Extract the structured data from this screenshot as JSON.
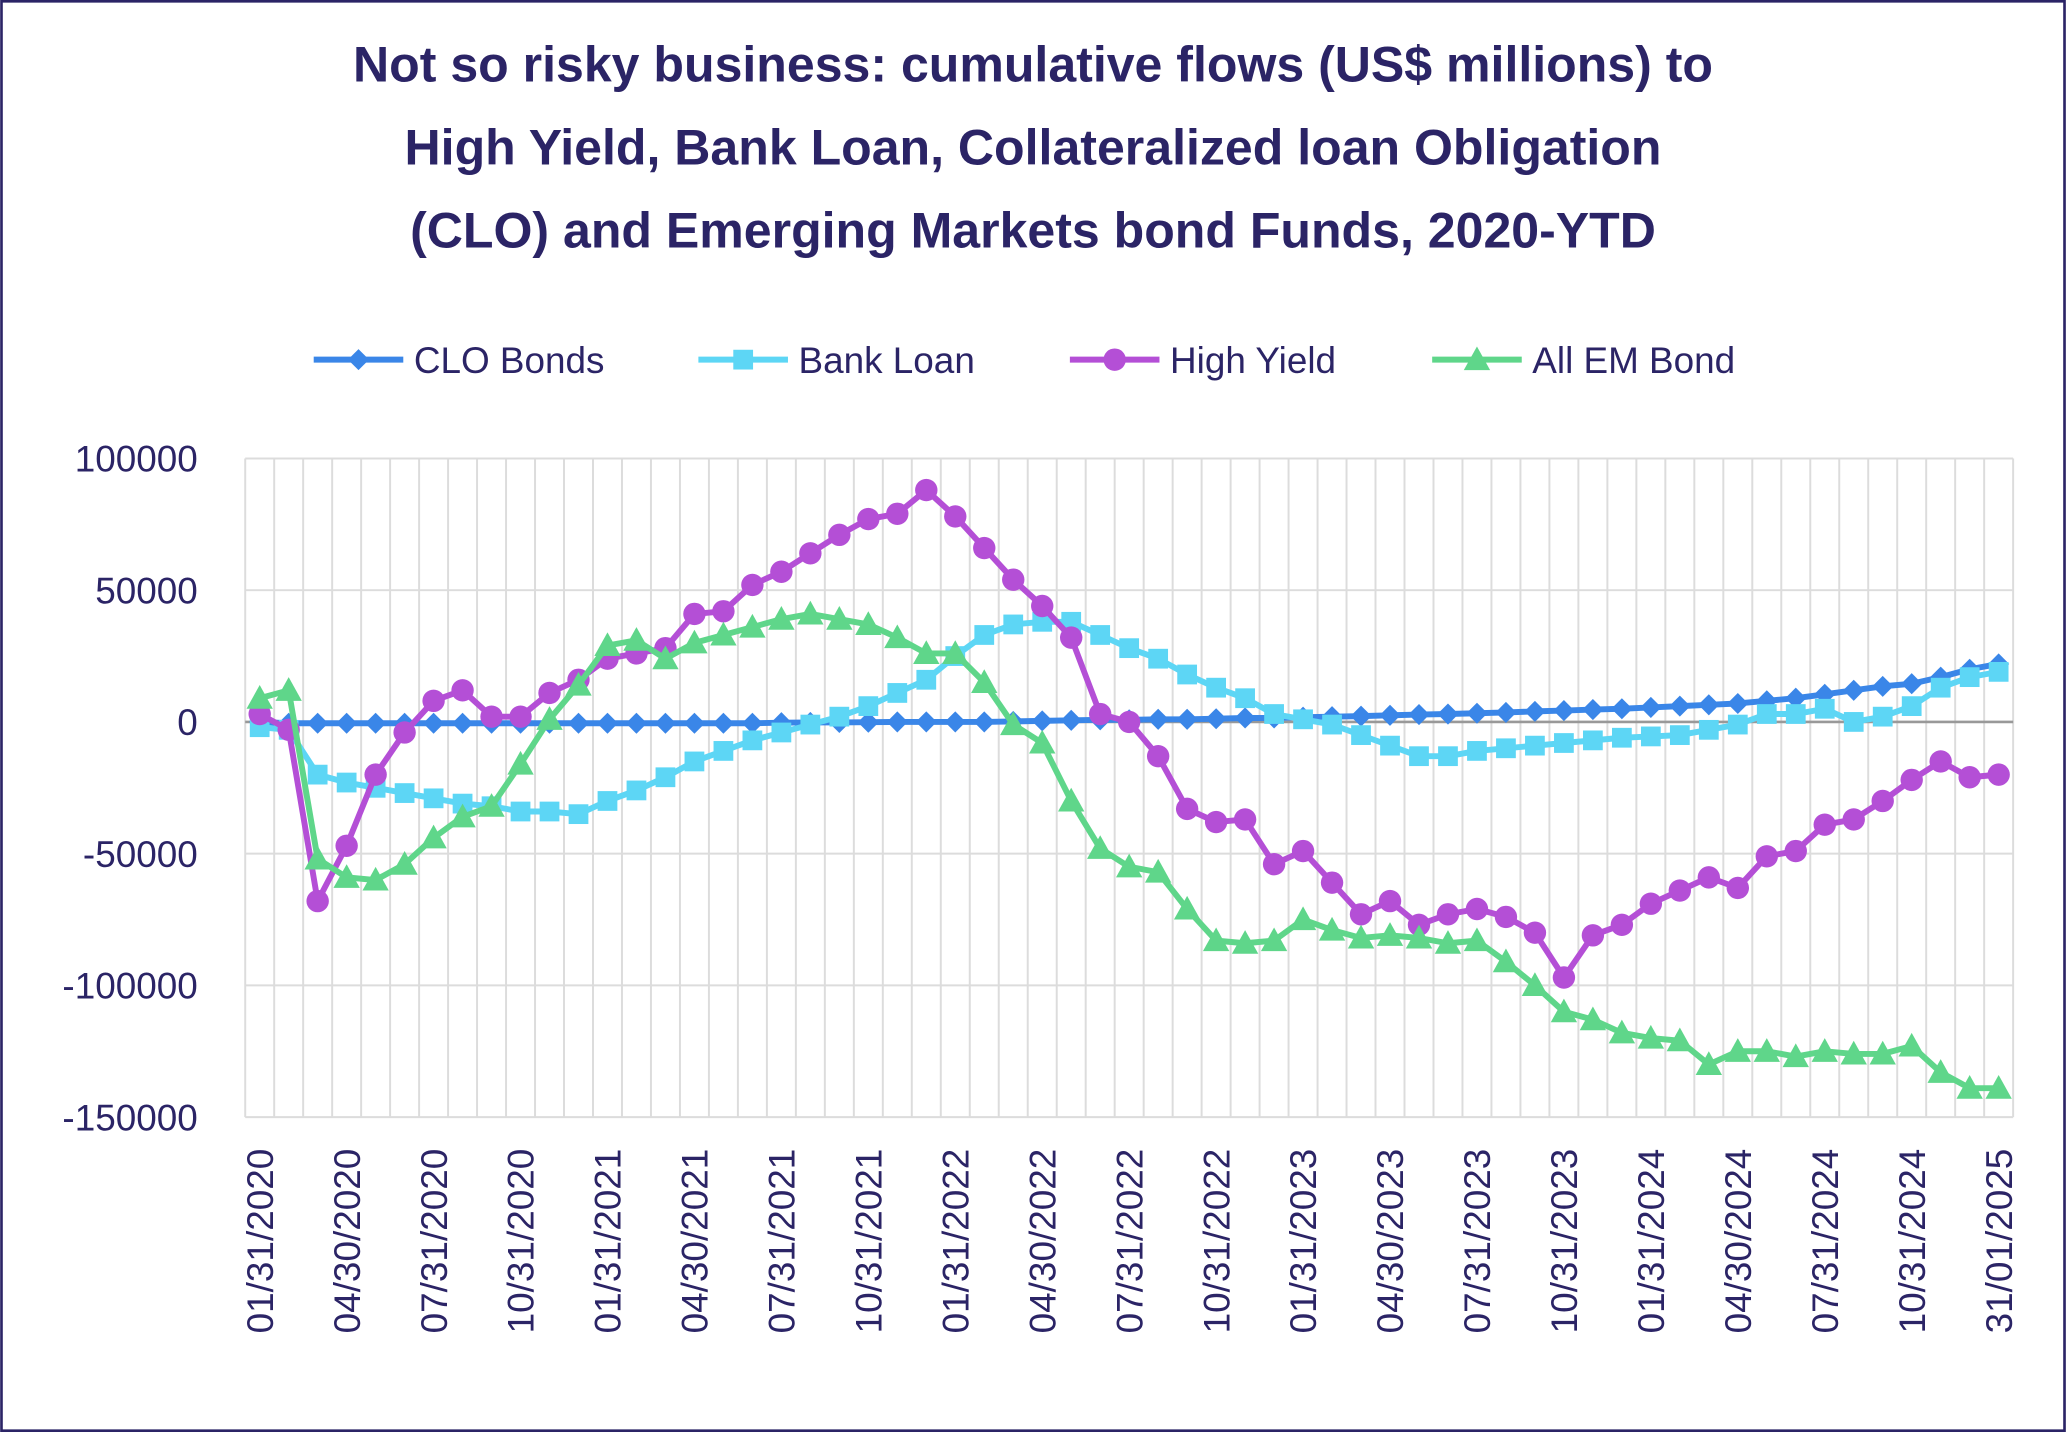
{
  "chart_data": {
    "type": "line",
    "title": [
      "Not so risky business: cumulative flows (US$ millions) to",
      "High Yield, Bank Loan, Collateralized loan Obligation",
      "(CLO) and Emerging Markets bond Funds, 2020-YTD"
    ],
    "categories": [
      "01/31/2020",
      null,
      null,
      "04/30/2020",
      null,
      null,
      "07/31/2020",
      null,
      null,
      "10/31/2020",
      null,
      null,
      "01/31/2021",
      null,
      null,
      "04/30/2021",
      null,
      null,
      "07/31/2021",
      null,
      null,
      "10/31/2021",
      null,
      null,
      "01/31/2022",
      null,
      null,
      "04/30/2022",
      null,
      null,
      "07/31/2022",
      null,
      null,
      "10/31/2022",
      null,
      null,
      "01/31/2023",
      null,
      null,
      "04/30/2023",
      null,
      null,
      "07/31/2023",
      null,
      null,
      "10/31/2023",
      null,
      null,
      "01/31/2024",
      null,
      null,
      "04/30/2024",
      null,
      null,
      "07/31/2024",
      null,
      null,
      "10/31/2024",
      null,
      null,
      "31/01/2025"
    ],
    "series": [
      {
        "name": "CLO Bonds",
        "color": "#3a86e8",
        "marker": "diamond",
        "values": [
          0,
          -500,
          -500,
          -500,
          -500,
          -500,
          -500,
          -500,
          -500,
          -500,
          -500,
          -500,
          -500,
          -500,
          -500,
          -500,
          -500,
          -500,
          -300,
          -200,
          -200,
          -100,
          0,
          0,
          0,
          0,
          200,
          400,
          600,
          800,
          800,
          1000,
          1000,
          1200,
          1500,
          1500,
          1800,
          2000,
          2200,
          2500,
          2800,
          3000,
          3300,
          3600,
          4000,
          4300,
          4700,
          5000,
          5500,
          6000,
          6500,
          7000,
          8000,
          9000,
          10500,
          12000,
          13500,
          14500,
          17000,
          20000,
          22000
        ]
      },
      {
        "name": "Bank Loan",
        "color": "#5dd6f5",
        "marker": "square",
        "values": [
          -2000,
          -3000,
          -20000,
          -23000,
          -25000,
          -27000,
          -29000,
          -31000,
          -32000,
          -34000,
          -34000,
          -35000,
          -30000,
          -26000,
          -21000,
          -15000,
          -11000,
          -7000,
          -4000,
          -1000,
          2000,
          6000,
          11000,
          16000,
          25000,
          33000,
          37000,
          38000,
          38000,
          33000,
          28000,
          24000,
          18000,
          13000,
          9000,
          3000,
          1000,
          -1000,
          -5000,
          -9000,
          -13000,
          -13000,
          -11000,
          -10000,
          -9000,
          -8000,
          -7000,
          -6000,
          -5500,
          -5000,
          -3000,
          -1000,
          3000,
          3000,
          5000,
          0,
          2000,
          6000,
          13000,
          17000,
          19000
        ]
      },
      {
        "name": "High Yield",
        "color": "#b44fd6",
        "marker": "circle",
        "values": [
          3000,
          -3000,
          -68000,
          -47000,
          -20000,
          -4000,
          8000,
          12000,
          2000,
          2000,
          11000,
          16000,
          24000,
          26000,
          28000,
          41000,
          42000,
          52000,
          57000,
          64000,
          71000,
          77000,
          79000,
          88000,
          78000,
          66000,
          54000,
          44000,
          32000,
          3000,
          0,
          -13000,
          -33000,
          -38000,
          -37000,
          -54000,
          -49000,
          -61000,
          -73000,
          -68000,
          -77000,
          -73000,
          -71000,
          -74000,
          -80000,
          -97000,
          -81000,
          -77000,
          -69000,
          -64000,
          -59000,
          -63000,
          -51000,
          -49000,
          -39000,
          -37000,
          -30000,
          -22000,
          -15000,
          -21000,
          -20000
        ]
      },
      {
        "name": "All EM Bond",
        "color": "#5fd68a",
        "marker": "triangle",
        "values": [
          9000,
          12000,
          -52000,
          -59000,
          -60000,
          -54000,
          -44000,
          -36000,
          -32000,
          -16000,
          1000,
          14000,
          29000,
          31000,
          24000,
          30000,
          33000,
          36000,
          39000,
          41000,
          39000,
          37000,
          32000,
          26000,
          26000,
          15000,
          -1000,
          -8000,
          -30000,
          -48000,
          -55000,
          -57000,
          -71000,
          -83000,
          -84000,
          -83000,
          -75000,
          -79000,
          -82000,
          -81000,
          -82000,
          -84000,
          -83000,
          -91000,
          -100000,
          -110000,
          -113000,
          -118000,
          -120000,
          -121000,
          -130000,
          -125000,
          -125000,
          -127000,
          -125000,
          -126000,
          -126000,
          -123000,
          -133000,
          -139000,
          -139000
        ]
      }
    ],
    "ylim": [
      -150000,
      100000
    ],
    "yticks": [
      -150000,
      -100000,
      -50000,
      0,
      50000,
      100000
    ],
    "grid": true,
    "legend": "top"
  }
}
